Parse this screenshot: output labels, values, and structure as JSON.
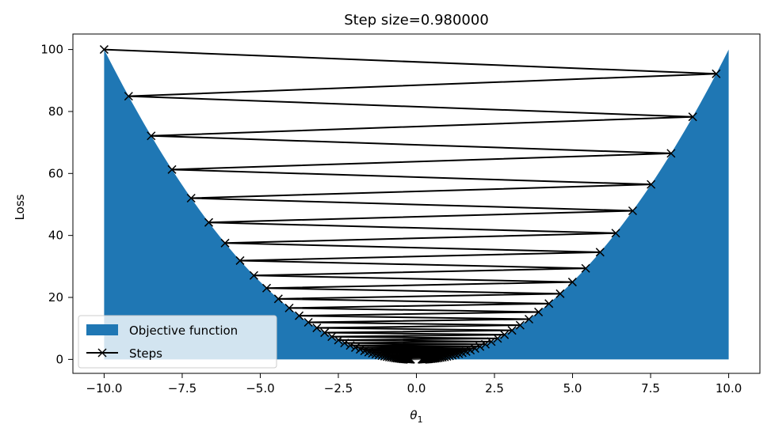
{
  "chart_data": {
    "type": "line",
    "title": "Step size=0.980000",
    "xlabel": "θ",
    "xlabel_subscript": "1",
    "ylabel": "Loss",
    "xlim": [
      -11,
      11
    ],
    "ylim": [
      -4.5,
      105
    ],
    "x_ticks": [
      -10,
      -7.5,
      -5,
      -2.5,
      0,
      2.5,
      5,
      7.5,
      10
    ],
    "x_tick_labels": [
      "−10.0",
      "−7.5",
      "−5.0",
      "−2.5",
      "0.0",
      "2.5",
      "5.0",
      "7.5",
      "10.0"
    ],
    "y_ticks": [
      0,
      20,
      40,
      60,
      80,
      100
    ],
    "y_tick_labels": [
      "0",
      "20",
      "40",
      "60",
      "80",
      "100"
    ],
    "grid": false,
    "legend_position": "lower-left",
    "series": [
      {
        "name": "Objective function",
        "kind": "area",
        "function": "theta^2",
        "x_range": [
          -10,
          10
        ],
        "color": "#1f77b4"
      },
      {
        "name": "Steps",
        "kind": "line",
        "marker": "x",
        "color": "#000000",
        "start_x": -10,
        "step_size": 0.98,
        "update_rule": "theta_next = theta - step_size * 2 * theta",
        "num_points": 100
      }
    ]
  }
}
